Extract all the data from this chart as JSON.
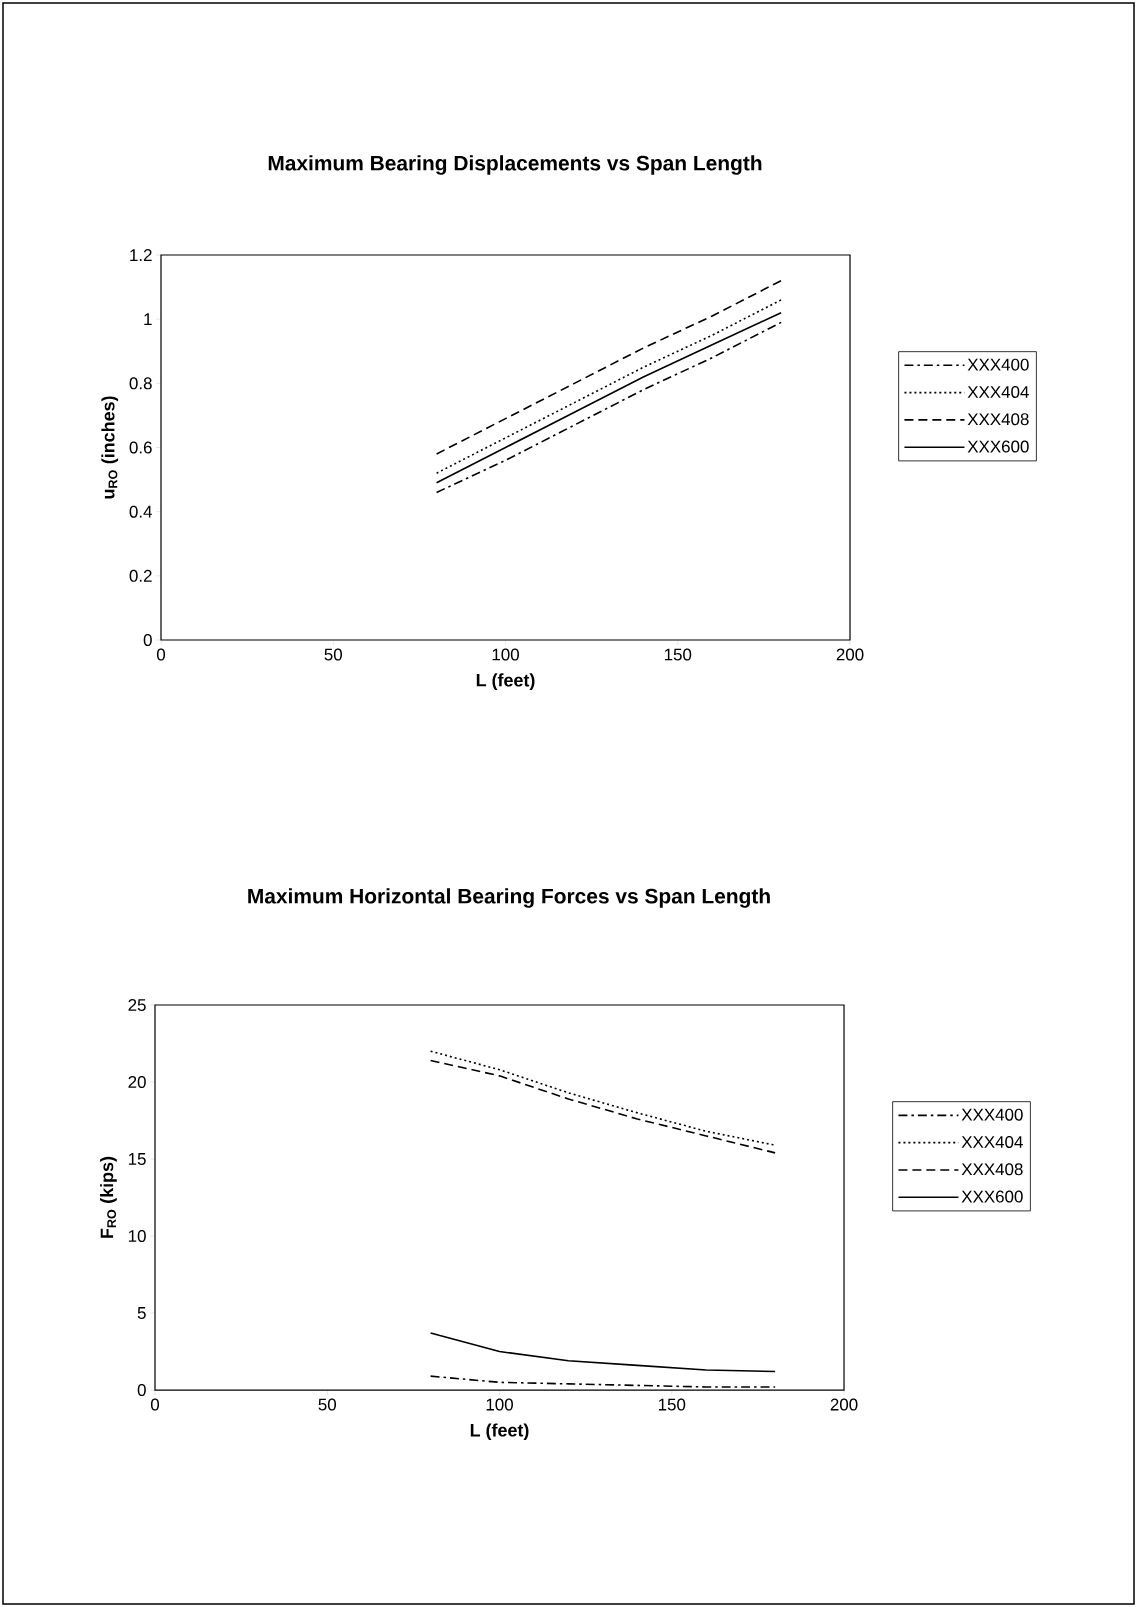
{
  "chart_data": [
    {
      "type": "line",
      "title": "Maximum Bearing Displacements vs Span Length",
      "xlabel": "L (feet)",
      "ylabel": "u$_{RO}$ (inches)",
      "x": [
        80,
        100,
        120,
        140,
        160,
        180
      ],
      "series": [
        {
          "name": "XXX400",
          "color": "#000000",
          "line_style": "dashdot",
          "values": [
            0.46,
            0.56,
            0.67,
            0.78,
            0.88,
            0.99
          ]
        },
        {
          "name": "XXX404",
          "color": "#000000",
          "line_style": "dotted",
          "values": [
            0.52,
            0.63,
            0.74,
            0.85,
            0.95,
            1.06
          ]
        },
        {
          "name": "XXX408",
          "color": "#000000",
          "line_style": "dashed",
          "values": [
            0.58,
            0.69,
            0.8,
            0.91,
            1.01,
            1.12
          ]
        },
        {
          "name": "XXX600",
          "color": "#000000",
          "line_style": "solid",
          "values": [
            0.49,
            0.6,
            0.71,
            0.82,
            0.92,
            1.02
          ]
        }
      ],
      "xlim": [
        0,
        200
      ],
      "xticks": [
        0,
        50,
        100,
        150,
        200
      ],
      "ylim": [
        0,
        1.2
      ],
      "yticks": [
        0,
        0.2,
        0.4,
        0.6,
        0.8,
        1,
        1.2
      ],
      "grid": false,
      "legend": "right"
    },
    {
      "type": "line",
      "title": "Maximum Horizontal Bearing Forces vs Span Length",
      "xlabel": "L (feet)",
      "ylabel": "F$_{RO}$ (kips)",
      "x": [
        80,
        100,
        120,
        140,
        160,
        180
      ],
      "series": [
        {
          "name": "XXX400",
          "color": "#000000",
          "line_style": "dashdot",
          "values": [
            0.9,
            0.5,
            0.4,
            0.3,
            0.2,
            0.2
          ]
        },
        {
          "name": "XXX404",
          "color": "#000000",
          "line_style": "dotted",
          "values": [
            22.0,
            20.8,
            19.3,
            18.0,
            16.8,
            15.9
          ]
        },
        {
          "name": "XXX408",
          "color": "#000000",
          "line_style": "dashed",
          "values": [
            21.4,
            20.4,
            18.9,
            17.6,
            16.5,
            15.4
          ]
        },
        {
          "name": "XXX600",
          "color": "#000000",
          "line_style": "solid",
          "values": [
            3.7,
            2.5,
            1.9,
            1.6,
            1.3,
            1.2
          ]
        }
      ],
      "xlim": [
        0,
        200
      ],
      "xticks": [
        0,
        50,
        100,
        150,
        200
      ],
      "ylim": [
        0,
        25
      ],
      "yticks": [
        0,
        5,
        10,
        15,
        20,
        25
      ],
      "grid": false,
      "legend": "right"
    }
  ]
}
